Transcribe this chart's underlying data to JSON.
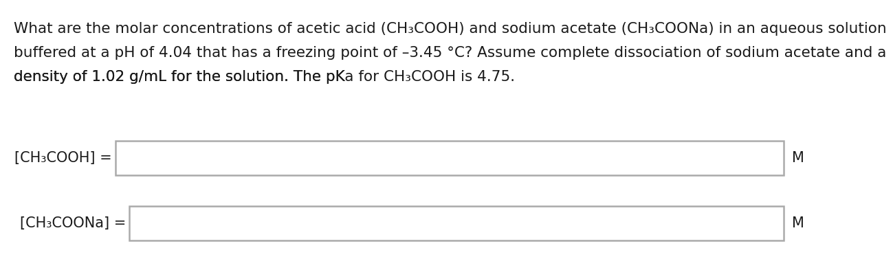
{
  "background_color": "#ffffff",
  "line1": "What are the molar concentrations of acetic acid (CH₃COOH) and sodium acetate (CH₃COONa) in an aqueous solution",
  "line2": "buffered at a pH of 4.04 that has a freezing point of –3.45 °C? Assume complete dissociation of sodium acetate and a",
  "line3": "density of 1.02 g/mL for the solution. The pK",
  "line3b": "a",
  "line3c": " for CH₃COOH is 4.75.",
  "label1": "[CH₃COOH] =",
  "label2": "[CH₃COONa] =",
  "unit": "M",
  "text_color": "#1a1a1a",
  "box_facecolor": "#ffffff",
  "box_edgecolor": "#aaaaaa",
  "font_size_paragraph": 15.5,
  "font_size_label": 15.0,
  "font_size_unit": 15.0,
  "fig_width": 12.0,
  "fig_height": 3.73
}
